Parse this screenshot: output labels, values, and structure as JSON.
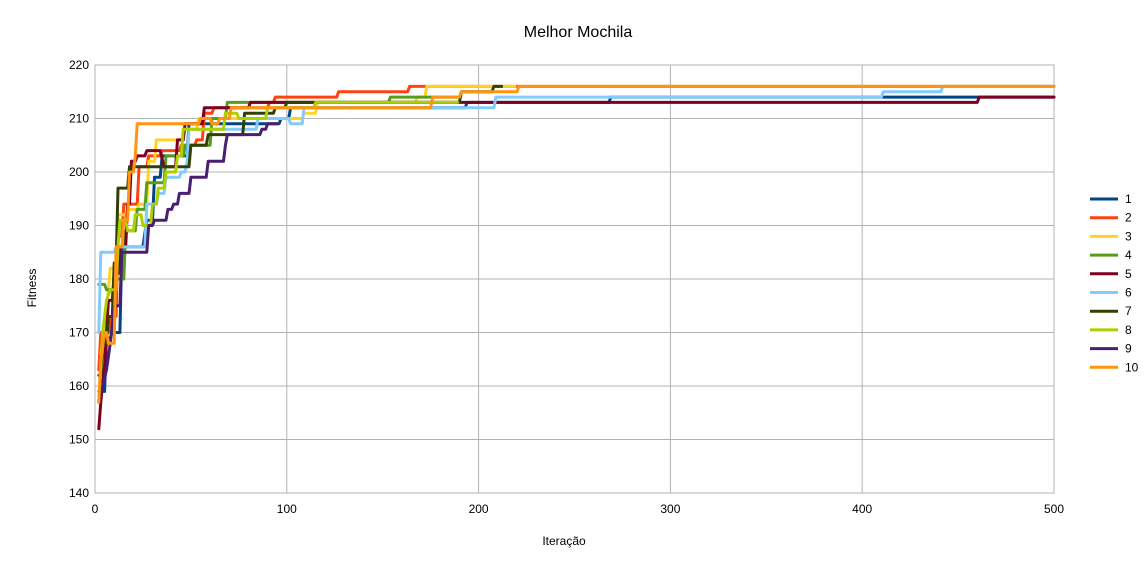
{
  "chart_data": {
    "type": "line",
    "title": "Melhor Mochila",
    "xlabel": "Iteração",
    "ylabel": "Fitness",
    "xlim": [
      0,
      500
    ],
    "ylim": [
      140,
      220
    ],
    "xticks": [
      0,
      100,
      200,
      300,
      400,
      500
    ],
    "yticks": [
      140,
      150,
      160,
      170,
      180,
      190,
      200,
      210,
      220
    ],
    "grid": true,
    "legend_position": "right",
    "series": [
      {
        "name": "1",
        "color": "#004586",
        "points": [
          [
            2,
            159
          ],
          [
            5,
            159
          ],
          [
            6,
            169
          ],
          [
            8,
            169
          ],
          [
            9,
            170
          ],
          [
            13,
            170
          ],
          [
            14,
            186
          ],
          [
            25,
            186
          ],
          [
            27,
            191
          ],
          [
            30,
            191
          ],
          [
            31,
            199
          ],
          [
            34,
            199
          ],
          [
            35,
            203
          ],
          [
            48,
            203
          ],
          [
            49,
            209
          ],
          [
            96,
            209
          ],
          [
            97,
            210
          ],
          [
            101,
            210
          ],
          [
            102,
            212
          ],
          [
            193,
            212
          ],
          [
            194,
            213
          ],
          [
            268,
            213
          ],
          [
            269,
            214
          ],
          [
            500,
            214
          ]
        ]
      },
      {
        "name": "2",
        "color": "#ff420e",
        "points": [
          [
            2,
            163
          ],
          [
            3,
            170
          ],
          [
            7,
            170
          ],
          [
            8,
            173
          ],
          [
            11,
            173
          ],
          [
            12,
            188
          ],
          [
            14,
            188
          ],
          [
            15,
            194
          ],
          [
            22,
            194
          ],
          [
            23,
            201
          ],
          [
            27,
            201
          ],
          [
            28,
            203
          ],
          [
            34,
            203
          ],
          [
            35,
            204
          ],
          [
            44,
            204
          ],
          [
            45,
            205
          ],
          [
            52,
            205
          ],
          [
            53,
            206
          ],
          [
            56,
            206
          ],
          [
            57,
            211
          ],
          [
            61,
            211
          ],
          [
            62,
            212
          ],
          [
            90,
            212
          ],
          [
            91,
            213
          ],
          [
            93,
            213
          ],
          [
            94,
            214
          ],
          [
            126,
            214
          ],
          [
            127,
            215
          ],
          [
            163,
            215
          ],
          [
            164,
            216
          ],
          [
            500,
            216
          ]
        ]
      },
      {
        "name": "3",
        "color": "#ffd320",
        "points": [
          [
            3,
            166
          ],
          [
            5,
            170
          ],
          [
            7,
            178
          ],
          [
            8,
            182
          ],
          [
            11,
            182
          ],
          [
            12,
            192
          ],
          [
            16,
            192
          ],
          [
            17,
            193
          ],
          [
            22,
            193
          ],
          [
            23,
            194
          ],
          [
            27,
            194
          ],
          [
            28,
            202
          ],
          [
            31,
            202
          ],
          [
            32,
            206
          ],
          [
            46,
            206
          ],
          [
            47,
            208
          ],
          [
            53,
            208
          ],
          [
            54,
            210
          ],
          [
            108,
            210
          ],
          [
            109,
            211
          ],
          [
            115,
            211
          ],
          [
            116,
            213
          ],
          [
            167,
            213
          ],
          [
            168,
            214
          ],
          [
            172,
            214
          ],
          [
            173,
            216
          ],
          [
            219,
            216
          ]
        ]
      },
      {
        "name": "4",
        "color": "#579d1c",
        "points": [
          [
            2,
            179
          ],
          [
            5,
            179
          ],
          [
            6,
            178
          ],
          [
            10,
            178
          ],
          [
            11,
            180
          ],
          [
            15,
            180
          ],
          [
            16,
            189
          ],
          [
            21,
            189
          ],
          [
            22,
            193
          ],
          [
            26,
            193
          ],
          [
            27,
            198
          ],
          [
            36,
            198
          ],
          [
            37,
            203
          ],
          [
            46,
            203
          ],
          [
            47,
            205
          ],
          [
            60,
            205
          ],
          [
            61,
            210
          ],
          [
            68,
            210
          ],
          [
            69,
            213
          ],
          [
            88,
            213
          ],
          [
            89,
            213
          ],
          [
            127,
            213
          ],
          [
            153,
            213
          ],
          [
            154,
            214
          ],
          [
            189,
            214
          ]
        ]
      },
      {
        "name": "5",
        "color": "#7e0021",
        "points": [
          [
            2,
            152
          ],
          [
            3,
            157
          ],
          [
            5,
            164
          ],
          [
            7,
            176
          ],
          [
            9,
            176
          ],
          [
            10,
            181
          ],
          [
            12,
            181
          ],
          [
            13,
            186
          ],
          [
            16,
            186
          ],
          [
            17,
            194
          ],
          [
            18,
            194
          ],
          [
            19,
            202
          ],
          [
            21,
            202
          ],
          [
            22,
            203
          ],
          [
            26,
            203
          ],
          [
            27,
            204
          ],
          [
            34,
            204
          ],
          [
            36,
            201
          ],
          [
            42,
            201
          ],
          [
            43,
            206
          ],
          [
            46,
            206
          ],
          [
            47,
            209
          ],
          [
            56,
            209
          ],
          [
            57,
            212
          ],
          [
            80,
            212
          ],
          [
            81,
            213
          ],
          [
            96,
            213
          ],
          [
            100,
            213
          ],
          [
            108,
            213
          ],
          [
            109,
            213
          ],
          [
            460,
            213
          ],
          [
            461,
            214
          ],
          [
            500,
            214
          ]
        ]
      },
      {
        "name": "6",
        "color": "#83caff",
        "points": [
          [
            2,
            170
          ],
          [
            3,
            185
          ],
          [
            10,
            185
          ],
          [
            11,
            186
          ],
          [
            26,
            186
          ],
          [
            27,
            194
          ],
          [
            32,
            194
          ],
          [
            33,
            196
          ],
          [
            36,
            196
          ],
          [
            37,
            199
          ],
          [
            44,
            199
          ],
          [
            45,
            200
          ],
          [
            47,
            200
          ],
          [
            48,
            202
          ],
          [
            49,
            208
          ],
          [
            84,
            208
          ],
          [
            85,
            210
          ],
          [
            101,
            210
          ],
          [
            102,
            209
          ],
          [
            108,
            209
          ],
          [
            109,
            212
          ],
          [
            208,
            212
          ],
          [
            209,
            214
          ],
          [
            410,
            214
          ],
          [
            411,
            215
          ],
          [
            441,
            215
          ],
          [
            442,
            216
          ],
          [
            500,
            216
          ]
        ]
      },
      {
        "name": "7",
        "color": "#314004",
        "points": [
          [
            2,
            162
          ],
          [
            3,
            162
          ],
          [
            4,
            168
          ],
          [
            6,
            168
          ],
          [
            7,
            173
          ],
          [
            9,
            173
          ],
          [
            10,
            183
          ],
          [
            11,
            183
          ],
          [
            12,
            197
          ],
          [
            17,
            197
          ],
          [
            18,
            201
          ],
          [
            27,
            201
          ],
          [
            28,
            201
          ],
          [
            49,
            201
          ],
          [
            50,
            205
          ],
          [
            58,
            205
          ],
          [
            59,
            207
          ],
          [
            77,
            207
          ],
          [
            78,
            211
          ],
          [
            93,
            211
          ],
          [
            94,
            212
          ],
          [
            99,
            212
          ],
          [
            100,
            213
          ],
          [
            190,
            213
          ],
          [
            191,
            215
          ],
          [
            207,
            215
          ],
          [
            208,
            216
          ],
          [
            212,
            216
          ]
        ]
      },
      {
        "name": "8",
        "color": "#aecf00",
        "points": [
          [
            2,
            157
          ],
          [
            4,
            170
          ],
          [
            6,
            176
          ],
          [
            8,
            178
          ],
          [
            11,
            178
          ],
          [
            12,
            186
          ],
          [
            13,
            191
          ],
          [
            16,
            191
          ],
          [
            17,
            189
          ],
          [
            20,
            189
          ],
          [
            21,
            192
          ],
          [
            24,
            192
          ],
          [
            25,
            190
          ],
          [
            29,
            190
          ],
          [
            30,
            194
          ],
          [
            32,
            194
          ],
          [
            33,
            197
          ],
          [
            36,
            197
          ],
          [
            37,
            200
          ],
          [
            42,
            200
          ],
          [
            43,
            203
          ],
          [
            45,
            203
          ],
          [
            46,
            208
          ],
          [
            67,
            208
          ],
          [
            68,
            211
          ],
          [
            74,
            211
          ],
          [
            75,
            210
          ],
          [
            89,
            210
          ],
          [
            90,
            212
          ],
          [
            114,
            212
          ],
          [
            115,
            213
          ],
          [
            151,
            213
          ],
          [
            152,
            213
          ],
          [
            189,
            213
          ]
        ]
      },
      {
        "name": "9",
        "color": "#4b1f6f",
        "points": [
          [
            2,
            157
          ],
          [
            6,
            163
          ],
          [
            8,
            168
          ],
          [
            10,
            175
          ],
          [
            13,
            175
          ],
          [
            14,
            185
          ],
          [
            27,
            185
          ],
          [
            28,
            190
          ],
          [
            30,
            190
          ],
          [
            31,
            191
          ],
          [
            37,
            191
          ],
          [
            38,
            193
          ],
          [
            40,
            193
          ],
          [
            41,
            194
          ],
          [
            43,
            194
          ],
          [
            44,
            196
          ],
          [
            49,
            196
          ],
          [
            50,
            199
          ],
          [
            58,
            199
          ],
          [
            59,
            202
          ],
          [
            67,
            202
          ],
          [
            68,
            205
          ],
          [
            69,
            207
          ],
          [
            86,
            207
          ],
          [
            87,
            208
          ],
          [
            89,
            208
          ],
          [
            90,
            209
          ],
          [
            94,
            209
          ],
          [
            95,
            209
          ]
        ]
      },
      {
        "name": "10",
        "color": "#ff950e",
        "points": [
          [
            2,
            157
          ],
          [
            3,
            165
          ],
          [
            5,
            170
          ],
          [
            6,
            170
          ],
          [
            7,
            168
          ],
          [
            10,
            168
          ],
          [
            11,
            186
          ],
          [
            14,
            186
          ],
          [
            15,
            191
          ],
          [
            17,
            191
          ],
          [
            18,
            200
          ],
          [
            20,
            200
          ],
          [
            21,
            203
          ],
          [
            22,
            209
          ],
          [
            54,
            209
          ],
          [
            55,
            210
          ],
          [
            60,
            210
          ],
          [
            61,
            209
          ],
          [
            64,
            209
          ],
          [
            65,
            210
          ],
          [
            70,
            210
          ],
          [
            71,
            212
          ],
          [
            175,
            212
          ],
          [
            176,
            214
          ],
          [
            190,
            214
          ],
          [
            191,
            215
          ],
          [
            220,
            215
          ],
          [
            221,
            216
          ],
          [
            500,
            216
          ]
        ]
      }
    ]
  }
}
